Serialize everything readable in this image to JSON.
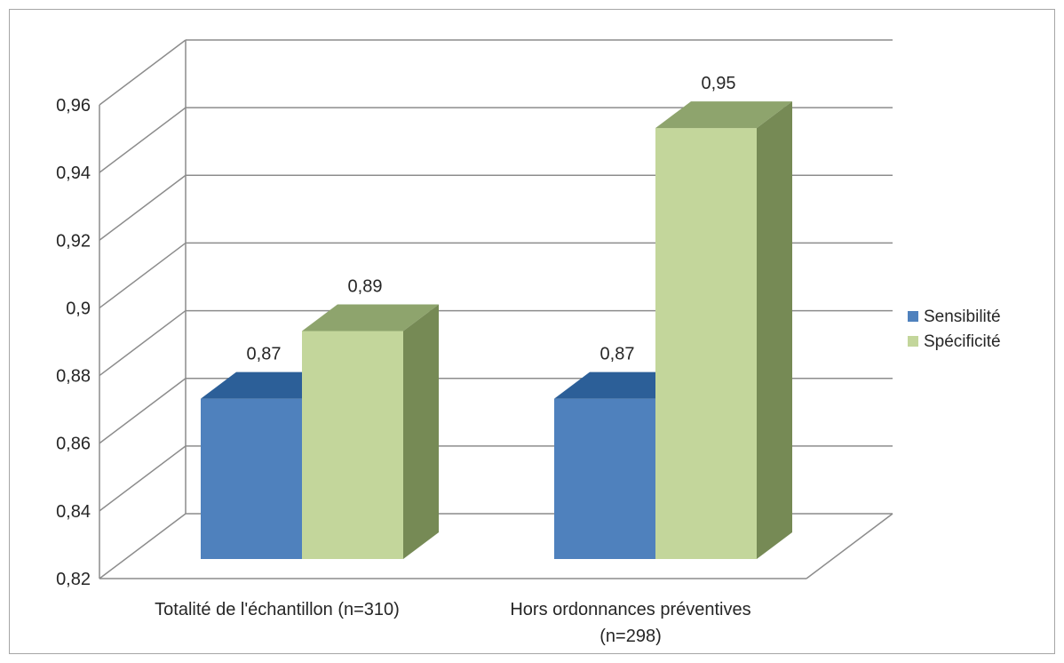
{
  "chart_data": {
    "type": "bar",
    "three_d": true,
    "categories": [
      [
        "Totalité de l'échantillon (n=310)"
      ],
      [
        "Hors ordonnances préventives",
        "(n=298)"
      ]
    ],
    "series": [
      {
        "name": "Sensibilité",
        "values": [
          0.87,
          0.87
        ],
        "labels": [
          "0,87",
          "0,87"
        ],
        "color": "#4f81bd",
        "top_color": "#2c5f98",
        "side_color": "#3a6aa3"
      },
      {
        "name": "Spécificité",
        "values": [
          0.89,
          0.95
        ],
        "labels": [
          "0,89",
          "0,95"
        ],
        "color": "#c3d69b",
        "top_color": "#8ea46d",
        "side_color": "#768a55"
      }
    ],
    "ylim": [
      0.82,
      0.96
    ],
    "yticks": [
      0.82,
      0.84,
      0.86,
      0.88,
      0.9,
      0.92,
      0.94,
      0.96
    ],
    "ytick_labels": [
      "0,82",
      "0,84",
      "0,86",
      "0,88",
      "0,9",
      "0,92",
      "0,94",
      "0,96"
    ],
    "grid": true,
    "legend_position": "right",
    "title": "",
    "xlabel": "",
    "ylabel": ""
  }
}
